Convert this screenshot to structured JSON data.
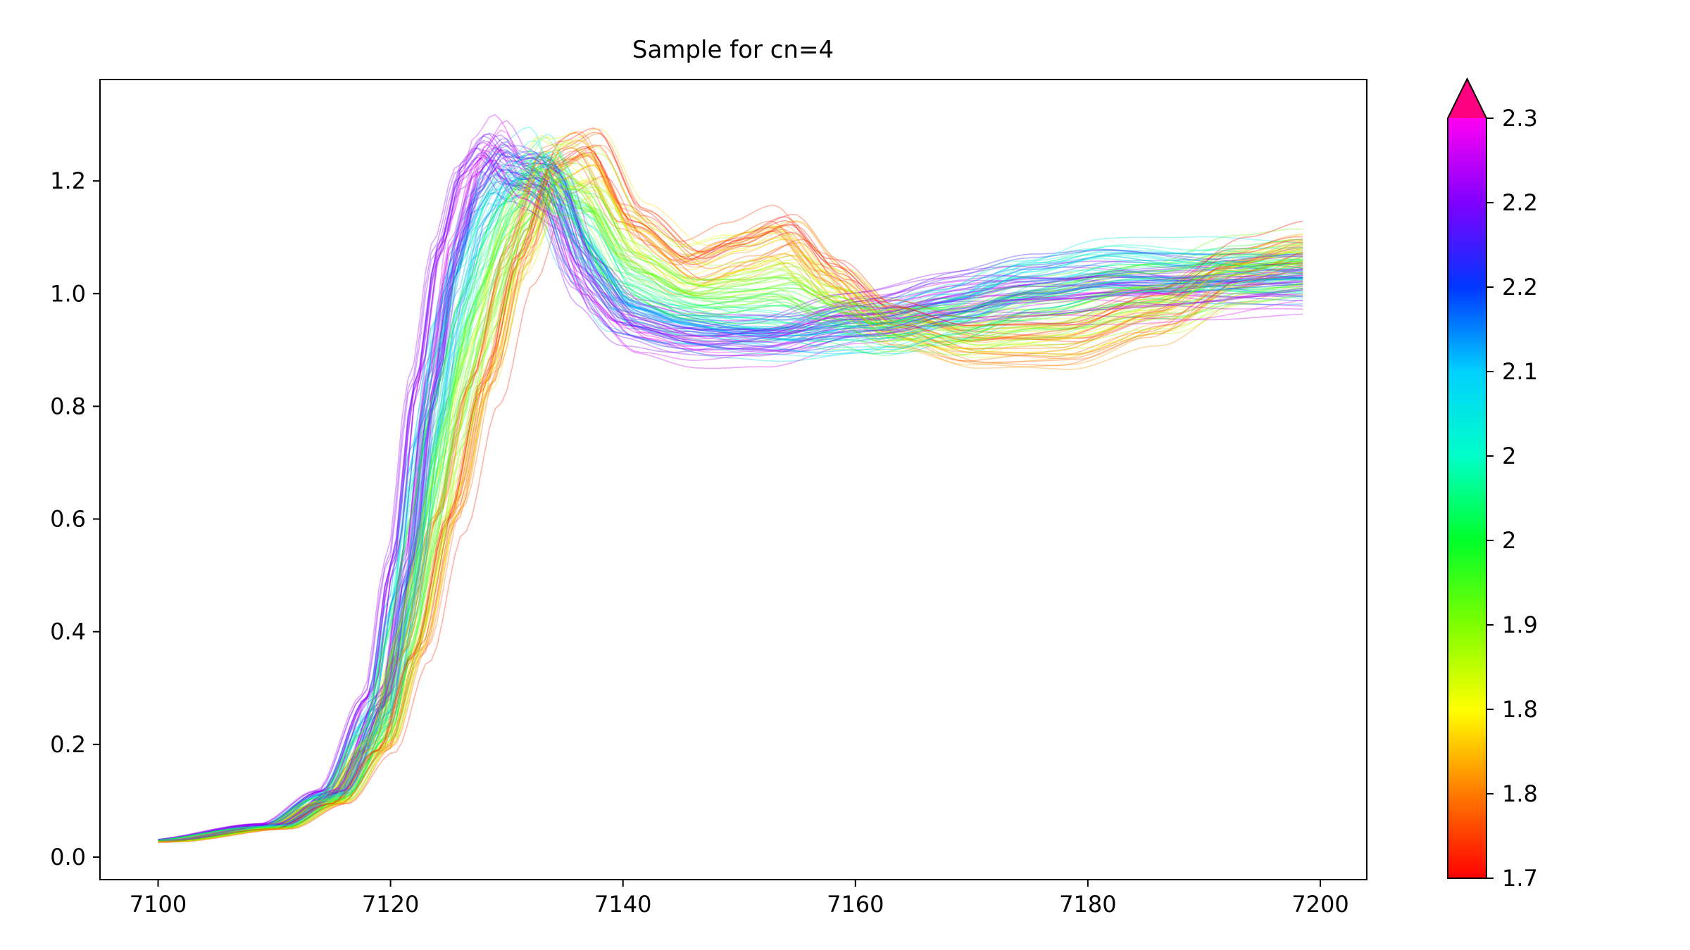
{
  "chart_data": {
    "type": "line",
    "title": "Sample for cn=4",
    "xlabel": "",
    "ylabel": "",
    "xlim": [
      7095,
      7204
    ],
    "ylim": [
      -0.04,
      1.38
    ],
    "x_ticks": [
      7100,
      7120,
      7140,
      7160,
      7180,
      7200
    ],
    "y_ticks": [
      0.0,
      0.2,
      0.4,
      0.6,
      0.8,
      1.0,
      1.2
    ],
    "x_tick_labels": [
      "7100",
      "7120",
      "7140",
      "7160",
      "7180",
      "7200"
    ],
    "y_tick_labels": [
      "0.0",
      "0.2",
      "0.4",
      "0.6",
      "0.8",
      "1.0",
      "1.2"
    ],
    "x_range": [
      7100,
      7198.5
    ],
    "series_count": 140,
    "series_color_value_range": [
      1.7,
      2.3
    ],
    "grid": false,
    "legend": "none",
    "colorbar": {
      "colormap": "gist_rainbow",
      "range": [
        1.7,
        2.3
      ],
      "extend": "max",
      "tick_labels": [
        "1.7",
        "1.8",
        "1.8",
        "1.9",
        "2",
        "2",
        "2.1",
        "2.2",
        "2.2",
        "2.3"
      ],
      "colors": [
        "#ff0000",
        "#ff7a00",
        "#ffff00",
        "#7fff00",
        "#00ff2a",
        "#00ffc8",
        "#00d0ff",
        "#0036ff",
        "#8000ff",
        "#ff00f2",
        "#ff0080"
      ]
    },
    "representative_series": [
      {
        "color_value": 2.3,
        "x": [
          7100,
          7110,
          7115,
          7119,
          7121,
          7123,
          7125,
          7127,
          7128.5,
          7131,
          7134,
          7137,
          7141,
          7146,
          7152,
          7160,
          7170,
          7180,
          7190,
          7198.5
        ],
        "y": [
          0.03,
          0.06,
          0.12,
          0.3,
          0.55,
          0.88,
          1.12,
          1.25,
          1.28,
          1.2,
          1.16,
          1.0,
          0.93,
          0.91,
          0.92,
          0.97,
          1.0,
          1.0,
          1.0,
          1.01
        ]
      },
      {
        "color_value": 2.05,
        "x": [
          7100,
          7110,
          7115,
          7119,
          7121,
          7123,
          7125,
          7127,
          7130,
          7133,
          7136,
          7140,
          7145,
          7150,
          7156,
          7162,
          7168,
          7175,
          7182,
          7190,
          7198.5
        ],
        "y": [
          0.03,
          0.055,
          0.11,
          0.24,
          0.43,
          0.7,
          0.93,
          1.08,
          1.2,
          1.24,
          1.1,
          0.98,
          0.95,
          0.93,
          0.92,
          0.93,
          0.97,
          1.03,
          1.06,
          1.05,
          1.04
        ]
      },
      {
        "color_value": 1.8,
        "x": [
          7100,
          7110,
          7115,
          7119,
          7122,
          7125,
          7128,
          7131,
          7134,
          7137,
          7141,
          7146,
          7150,
          7154,
          7158,
          7163,
          7170,
          7178,
          7186,
          7193,
          7198.5
        ],
        "y": [
          0.027,
          0.05,
          0.095,
          0.19,
          0.36,
          0.6,
          0.84,
          1.06,
          1.22,
          1.25,
          1.12,
          1.05,
          1.08,
          1.11,
          1.03,
          0.95,
          0.91,
          0.91,
          0.96,
          1.04,
          1.07
        ]
      }
    ]
  }
}
